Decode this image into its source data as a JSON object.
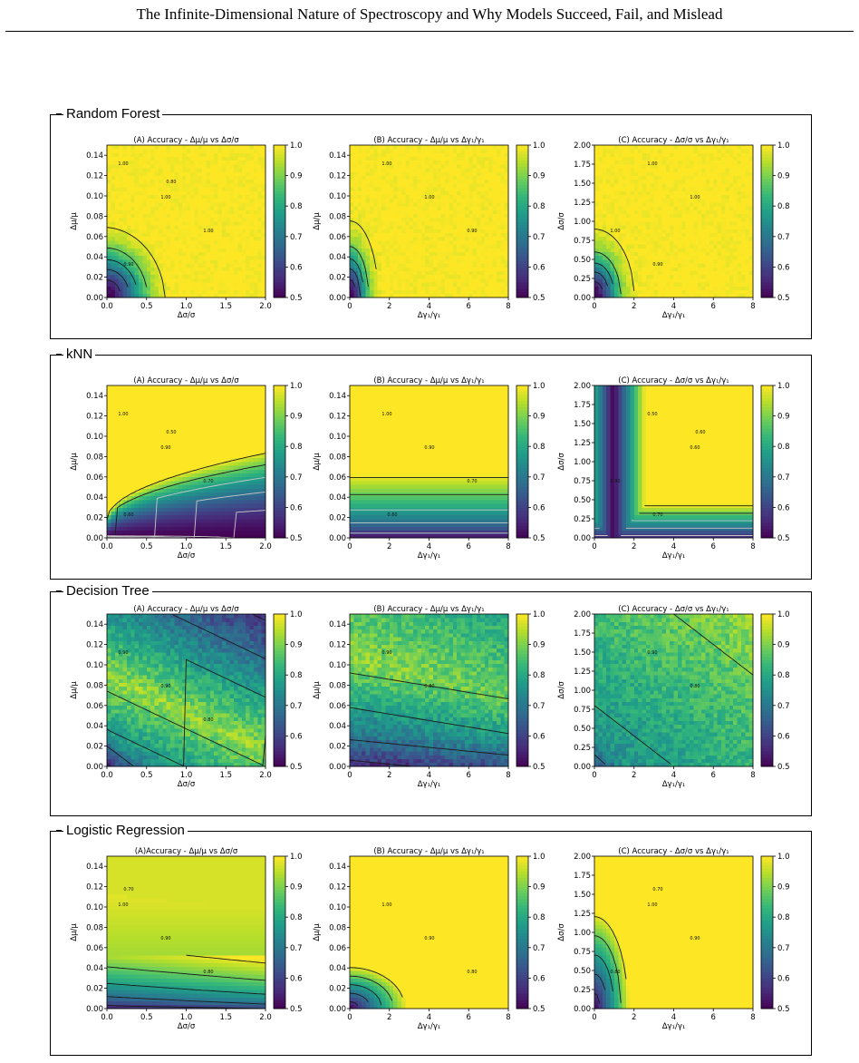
{
  "page": {
    "header": "The Infinite-Dimensional Nature of Spectroscopy and Why Models Succeed, Fail, and Mislead"
  },
  "colormap": [
    "#440154",
    "#482878",
    "#3e4989",
    "#31688e",
    "#26828e",
    "#1f9e89",
    "#35b779",
    "#6ece58",
    "#b5de2b",
    "#fde725"
  ],
  "colorbar_ticks": [
    "0.5",
    "0.6",
    "0.7",
    "0.8",
    "0.9",
    "1.0"
  ],
  "axes": {
    "mu_ticks": [
      "0.00",
      "0.02",
      "0.04",
      "0.06",
      "0.08",
      "0.10",
      "0.12",
      "0.14"
    ],
    "sigma_ticks": [
      "0.00",
      "0.25",
      "0.50",
      "0.75",
      "1.00",
      "1.25",
      "1.50",
      "1.75",
      "2.00"
    ],
    "sigma_x_ticks": [
      "0.0",
      "0.5",
      "1.0",
      "1.5",
      "2.0"
    ],
    "gamma_x_ticks": [
      "0",
      "2",
      "4",
      "6",
      "8"
    ],
    "label_mu": "Δμ/μ",
    "label_sigma": "Δσ/σ",
    "label_gamma": "Δγ₁/γ₁"
  },
  "sections": [
    {
      "name": "Random Forest",
      "panels": [
        {
          "title": "(A) Accuracy - Δμ/μ vs Δσ/σ",
          "contours": [
            "1.00",
            "1.00",
            "1.00",
            "0.90",
            "0.80"
          ]
        },
        {
          "title": "(B) Accuracy - Δμ/μ vs Δγ₁/γ₁",
          "contours": [
            "1.00",
            "1.00",
            "0.90"
          ]
        },
        {
          "title": "(C) Accuracy - Δσ/σ vs Δγ₁/γ₁",
          "contours": [
            "1.00",
            "1.00",
            "1.00",
            "0.90"
          ]
        }
      ]
    },
    {
      "name": "kNN",
      "panels": [
        {
          "title": "(A) Accuracy - Δμ/μ vs Δσ/σ",
          "contours": [
            "1.00",
            "0.90",
            "0.70",
            "0.60",
            "0.50"
          ]
        },
        {
          "title": "(B) Accuracy - Δμ/μ vs Δγ₁/γ₁",
          "contours": [
            "1.00",
            "0.90",
            "0.70",
            "0.60"
          ]
        },
        {
          "title": "(C) Accuracy - Δσ/σ vs Δγ₁/γ₁",
          "contours": [
            "0.50",
            "0.60",
            "0.90",
            "0.70",
            "0.60"
          ]
        }
      ]
    },
    {
      "name": "Decision Tree",
      "panels": [
        {
          "title": "(A) Accuracy - Δμ/μ vs Δσ/σ",
          "contours": [
            "0.90",
            "0.90",
            "0.80"
          ]
        },
        {
          "title": "(B) Accuracy - Δμ/μ vs Δγ₁/γ₁",
          "contours": [
            "0.90",
            "0.80"
          ]
        },
        {
          "title": "(C) Accuracy - Δσ/σ vs Δγ₁/γ₁",
          "contours": [
            "0.90",
            "0.80"
          ]
        }
      ]
    },
    {
      "name": "Logistic Regression",
      "panels": [
        {
          "title": "(A)Accuracy - Δμ/μ vs Δσ/σ",
          "contours": [
            "1.00",
            "0.90",
            "0.80",
            "0.70"
          ]
        },
        {
          "title": "(B) Accuracy - Δμ/μ vs Δγ₁/γ₁",
          "contours": [
            "1.00",
            "0.90",
            "0.80"
          ]
        },
        {
          "title": "(C) Accuracy - Δσ/σ vs Δγ₁/γ₁",
          "contours": [
            "1.00",
            "0.90",
            "0.80",
            "0.70"
          ]
        }
      ]
    }
  ],
  "chart_data": [
    {
      "type": "heatmap",
      "title": "(A) Accuracy - Δμ/μ vs Δσ/σ",
      "model": "Random Forest",
      "xlabel": "Δσ/σ",
      "ylabel": "Δμ/μ",
      "xlim": [
        0,
        2
      ],
      "ylim": [
        0,
        0.15
      ],
      "zlim": [
        0.5,
        1.0
      ],
      "contour_levels": [
        "1.00",
        "0.90",
        "0.80"
      ]
    },
    {
      "type": "heatmap",
      "title": "(B) Accuracy - Δμ/μ vs Δγ₁/γ₁",
      "model": "Random Forest",
      "xlabel": "Δγ₁/γ₁",
      "ylabel": "Δμ/μ",
      "xlim": [
        0,
        8
      ],
      "ylim": [
        0,
        0.15
      ],
      "zlim": [
        0.5,
        1.0
      ],
      "contour_levels": [
        "1.00",
        "0.90"
      ]
    },
    {
      "type": "heatmap",
      "title": "(C) Accuracy - Δσ/σ vs Δγ₁/γ₁",
      "model": "Random Forest",
      "xlabel": "Δγ₁/γ₁",
      "ylabel": "Δσ/σ",
      "xlim": [
        0,
        8
      ],
      "ylim": [
        0,
        2
      ],
      "zlim": [
        0.5,
        1.0
      ],
      "contour_levels": [
        "1.00",
        "0.90"
      ]
    },
    {
      "type": "heatmap",
      "title": "(A) Accuracy - Δμ/μ vs Δσ/σ",
      "model": "kNN",
      "xlabel": "Δσ/σ",
      "ylabel": "Δμ/μ",
      "xlim": [
        0,
        2
      ],
      "ylim": [
        0,
        0.15
      ],
      "zlim": [
        0.5,
        1.0
      ],
      "contour_levels": [
        "1.00",
        "0.90",
        "0.70",
        "0.60",
        "0.50"
      ]
    },
    {
      "type": "heatmap",
      "title": "(B) Accuracy - Δμ/μ vs Δγ₁/γ₁",
      "model": "kNN",
      "xlabel": "Δγ₁/γ₁",
      "ylabel": "Δμ/μ",
      "xlim": [
        0,
        8
      ],
      "ylim": [
        0,
        0.15
      ],
      "zlim": [
        0.5,
        1.0
      ],
      "contour_levels": [
        "1.00",
        "0.90",
        "0.70",
        "0.60"
      ]
    },
    {
      "type": "heatmap",
      "title": "(C) Accuracy - Δσ/σ vs Δγ₁/γ₁",
      "model": "kNN",
      "xlabel": "Δγ₁/γ₁",
      "ylabel": "Δσ/σ",
      "xlim": [
        0,
        8
      ],
      "ylim": [
        0,
        2
      ],
      "zlim": [
        0.5,
        1.0
      ],
      "contour_levels": [
        "0.50",
        "0.60",
        "0.70",
        "0.90"
      ]
    },
    {
      "type": "heatmap",
      "title": "(A) Accuracy - Δμ/μ vs Δσ/σ",
      "model": "Decision Tree",
      "xlabel": "Δσ/σ",
      "ylabel": "Δμ/μ",
      "xlim": [
        0,
        2
      ],
      "ylim": [
        0,
        0.15
      ],
      "zlim": [
        0.5,
        1.0
      ],
      "contour_levels": [
        "0.90",
        "0.80"
      ]
    },
    {
      "type": "heatmap",
      "title": "(B) Accuracy - Δμ/μ vs Δγ₁/γ₁",
      "model": "Decision Tree",
      "xlabel": "Δγ₁/γ₁",
      "ylabel": "Δμ/μ",
      "xlim": [
        0,
        8
      ],
      "ylim": [
        0,
        0.15
      ],
      "zlim": [
        0.5,
        1.0
      ],
      "contour_levels": [
        "0.90",
        "0.80"
      ]
    },
    {
      "type": "heatmap",
      "title": "(C) Accuracy - Δσ/σ vs Δγ₁/γ₁",
      "model": "Decision Tree",
      "xlabel": "Δγ₁/γ₁",
      "ylabel": "Δσ/σ",
      "xlim": [
        0,
        8
      ],
      "ylim": [
        0,
        2
      ],
      "zlim": [
        0.5,
        1.0
      ],
      "contour_levels": [
        "0.90",
        "0.80"
      ]
    },
    {
      "type": "heatmap",
      "title": "(A)Accuracy - Δμ/μ vs Δσ/σ",
      "model": "Logistic Regression",
      "xlabel": "Δσ/σ",
      "ylabel": "Δμ/μ",
      "xlim": [
        0,
        2
      ],
      "ylim": [
        0,
        0.15
      ],
      "zlim": [
        0.5,
        1.0
      ],
      "contour_levels": [
        "1.00",
        "0.90",
        "0.80",
        "0.70"
      ]
    },
    {
      "type": "heatmap",
      "title": "(B) Accuracy - Δμ/μ vs Δγ₁/γ₁",
      "model": "Logistic Regression",
      "xlabel": "Δγ₁/γ₁",
      "ylabel": "Δμ/μ",
      "xlim": [
        0,
        8
      ],
      "ylim": [
        0,
        0.15
      ],
      "zlim": [
        0.5,
        1.0
      ],
      "contour_levels": [
        "1.00",
        "0.90",
        "0.80"
      ]
    },
    {
      "type": "heatmap",
      "title": "(C) Accuracy - Δσ/σ vs Δγ₁/γ₁",
      "model": "Logistic Regression",
      "xlabel": "Δγ₁/γ₁",
      "ylabel": "Δσ/σ",
      "xlim": [
        0,
        8
      ],
      "ylim": [
        0,
        2
      ],
      "zlim": [
        0.5,
        1.0
      ],
      "contour_levels": [
        "1.00",
        "0.90",
        "0.80",
        "0.70"
      ]
    }
  ]
}
